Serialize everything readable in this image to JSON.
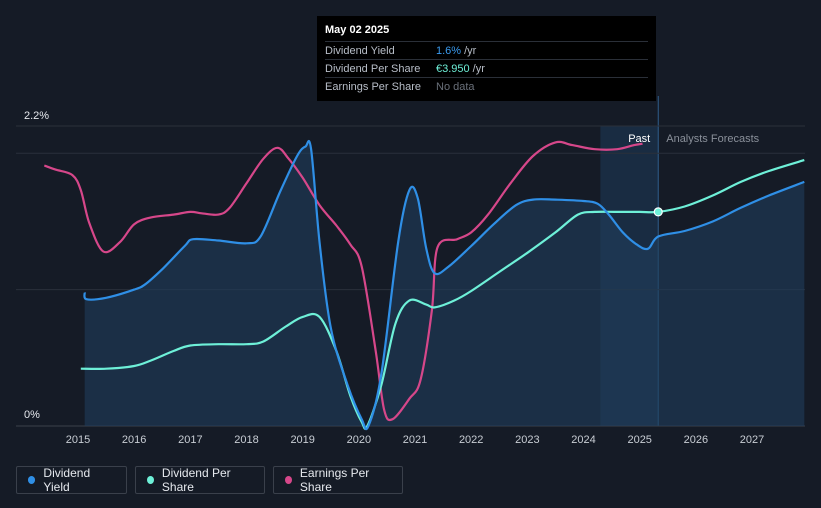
{
  "tooltip": {
    "date": "May 02 2025",
    "rows": [
      {
        "label": "Dividend Yield",
        "value": "1.6%",
        "unit": "/yr"
      },
      {
        "label": "Dividend Per Share",
        "value": "€3.950",
        "unit": "/yr"
      },
      {
        "label": "Earnings Per Share",
        "value": "No data",
        "unit": ""
      }
    ]
  },
  "legend": {
    "items": [
      {
        "label": "Dividend Yield",
        "color": "#2f8fe6"
      },
      {
        "label": "Dividend Per Share",
        "color": "#6ef0d8"
      },
      {
        "label": "Earnings Per Share",
        "color": "#d6478a"
      }
    ]
  },
  "chart_data": {
    "type": "line",
    "title": "",
    "y_tick_labels": [
      "2.2%",
      "0%"
    ],
    "x_tick_labels": [
      "2015",
      "2016",
      "2017",
      "2018",
      "2019",
      "2020",
      "2021",
      "2022",
      "2023",
      "2024",
      "2025",
      "2026",
      "2027"
    ],
    "past_label": "Past",
    "forecast_label": "Analysts Forecasts",
    "ylim": [
      0,
      2.2
    ],
    "xlim": [
      2014.0,
      2027.93
    ],
    "forecast_start": 2025.33,
    "past_band_start": 2024.3,
    "series": [
      {
        "name": "Dividend Yield",
        "color": "#2f8fe6",
        "area": true,
        "points": [
          [
            2015.12,
            0.98
          ],
          [
            2015.15,
            0.93
          ],
          [
            2015.5,
            0.94
          ],
          [
            2016.0,
            1.0
          ],
          [
            2016.2,
            1.04
          ],
          [
            2016.5,
            1.15
          ],
          [
            2016.9,
            1.32
          ],
          [
            2017.05,
            1.37
          ],
          [
            2017.5,
            1.36
          ],
          [
            2018.0,
            1.34
          ],
          [
            2018.25,
            1.39
          ],
          [
            2018.6,
            1.72
          ],
          [
            2018.9,
            1.98
          ],
          [
            2019.05,
            2.05
          ],
          [
            2019.15,
            2.03
          ],
          [
            2019.3,
            1.35
          ],
          [
            2019.5,
            0.72
          ],
          [
            2019.8,
            0.3
          ],
          [
            2020.05,
            0.05
          ],
          [
            2020.17,
            0.0
          ],
          [
            2020.4,
            0.38
          ],
          [
            2020.7,
            1.35
          ],
          [
            2020.9,
            1.73
          ],
          [
            2021.05,
            1.67
          ],
          [
            2021.2,
            1.3
          ],
          [
            2021.35,
            1.12
          ],
          [
            2021.6,
            1.17
          ],
          [
            2022.0,
            1.32
          ],
          [
            2022.4,
            1.48
          ],
          [
            2022.8,
            1.62
          ],
          [
            2023.1,
            1.66
          ],
          [
            2023.5,
            1.66
          ],
          [
            2024.0,
            1.65
          ],
          [
            2024.25,
            1.63
          ],
          [
            2024.45,
            1.55
          ],
          [
            2024.7,
            1.42
          ],
          [
            2024.95,
            1.33
          ],
          [
            2025.15,
            1.3
          ],
          [
            2025.33,
            1.39
          ],
          [
            2025.8,
            1.43
          ],
          [
            2026.3,
            1.5
          ],
          [
            2026.8,
            1.6
          ],
          [
            2027.3,
            1.69
          ],
          [
            2027.93,
            1.79
          ]
        ]
      },
      {
        "name": "Dividend Per Share",
        "color": "#6ef0d8",
        "area": false,
        "points": [
          [
            2015.05,
            0.42
          ],
          [
            2015.5,
            0.42
          ],
          [
            2016.0,
            0.44
          ],
          [
            2016.3,
            0.48
          ],
          [
            2016.7,
            0.55
          ],
          [
            2017.0,
            0.59
          ],
          [
            2017.5,
            0.6
          ],
          [
            2018.0,
            0.6
          ],
          [
            2018.3,
            0.62
          ],
          [
            2018.7,
            0.73
          ],
          [
            2019.0,
            0.8
          ],
          [
            2019.3,
            0.8
          ],
          [
            2019.6,
            0.55
          ],
          [
            2019.85,
            0.22
          ],
          [
            2020.05,
            0.03
          ],
          [
            2020.15,
            0.0
          ],
          [
            2020.4,
            0.3
          ],
          [
            2020.65,
            0.75
          ],
          [
            2020.9,
            0.92
          ],
          [
            2021.2,
            0.89
          ],
          [
            2021.35,
            0.87
          ],
          [
            2021.7,
            0.92
          ],
          [
            2022.0,
            0.99
          ],
          [
            2022.5,
            1.13
          ],
          [
            2023.0,
            1.27
          ],
          [
            2023.5,
            1.42
          ],
          [
            2023.9,
            1.55
          ],
          [
            2024.2,
            1.57
          ],
          [
            2024.6,
            1.57
          ],
          [
            2025.0,
            1.57
          ],
          [
            2025.33,
            1.57
          ],
          [
            2025.8,
            1.61
          ],
          [
            2026.3,
            1.69
          ],
          [
            2026.8,
            1.79
          ],
          [
            2027.3,
            1.87
          ],
          [
            2027.93,
            1.95
          ]
        ]
      },
      {
        "name": "Earnings Per Share",
        "color": "#d6478a",
        "area": false,
        "points": [
          [
            2014.4,
            1.91
          ],
          [
            2014.6,
            1.88
          ],
          [
            2014.9,
            1.84
          ],
          [
            2015.05,
            1.73
          ],
          [
            2015.2,
            1.49
          ],
          [
            2015.45,
            1.28
          ],
          [
            2015.75,
            1.35
          ],
          [
            2016.0,
            1.48
          ],
          [
            2016.3,
            1.53
          ],
          [
            2016.7,
            1.55
          ],
          [
            2017.0,
            1.57
          ],
          [
            2017.2,
            1.56
          ],
          [
            2017.5,
            1.55
          ],
          [
            2017.7,
            1.6
          ],
          [
            2018.0,
            1.78
          ],
          [
            2018.3,
            1.96
          ],
          [
            2018.55,
            2.04
          ],
          [
            2018.75,
            1.96
          ],
          [
            2019.0,
            1.82
          ],
          [
            2019.3,
            1.62
          ],
          [
            2019.6,
            1.47
          ],
          [
            2019.85,
            1.33
          ],
          [
            2020.05,
            1.17
          ],
          [
            2020.3,
            0.55
          ],
          [
            2020.45,
            0.12
          ],
          [
            2020.6,
            0.05
          ],
          [
            2020.9,
            0.2
          ],
          [
            2021.1,
            0.34
          ],
          [
            2021.3,
            0.85
          ],
          [
            2021.4,
            1.31
          ],
          [
            2021.75,
            1.37
          ],
          [
            2022.0,
            1.42
          ],
          [
            2022.3,
            1.55
          ],
          [
            2022.7,
            1.78
          ],
          [
            2023.1,
            1.98
          ],
          [
            2023.5,
            2.08
          ],
          [
            2023.8,
            2.06
          ],
          [
            2024.2,
            2.03
          ],
          [
            2024.6,
            2.03
          ],
          [
            2024.9,
            2.06
          ],
          [
            2025.05,
            2.07
          ]
        ]
      }
    ],
    "highlight_point": {
      "x": 2025.33,
      "y": 1.57
    }
  }
}
